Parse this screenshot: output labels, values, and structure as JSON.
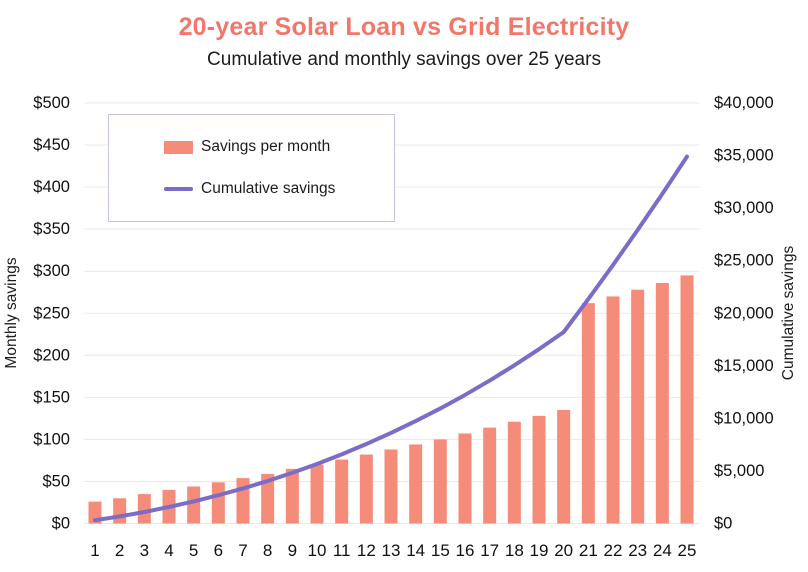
{
  "colors": {
    "title": "#f2776a",
    "bar": "#f58c79",
    "line": "#7c6bc7",
    "legend_border": "#c9c2e8",
    "gridline": "#e9e9ec",
    "text": "#1c1c1c",
    "tick_text": "#111111"
  },
  "chart_data": {
    "type": "bar",
    "title": "20-year Solar Loan vs Grid Electricity",
    "subtitle": "Cumulative and monthly savings over 25 years",
    "xlabel": "",
    "ylabel_left": "Monthly savings",
    "ylabel_right": "Cumulative savings",
    "ylim_left": [
      0,
      500
    ],
    "ylim_right": [
      0,
      40000
    ],
    "grid": "horizontal",
    "legend": {
      "position": "upper left"
    },
    "categories": [
      1,
      2,
      3,
      4,
      5,
      6,
      7,
      8,
      9,
      10,
      11,
      12,
      13,
      14,
      15,
      16,
      17,
      18,
      19,
      20,
      21,
      22,
      23,
      24,
      25
    ],
    "series": [
      {
        "name": "Savings per month",
        "type": "bar",
        "axis": "left",
        "color": "#f58c79",
        "values": [
          26,
          30,
          35,
          40,
          44,
          49,
          54,
          59,
          65,
          70,
          76,
          82,
          88,
          94,
          100,
          107,
          114,
          121,
          128,
          135,
          262,
          270,
          278,
          286,
          295
        ]
      },
      {
        "name": "Cumulative savings",
        "type": "line",
        "axis": "right",
        "color": "#7c6bc7",
        "values": [
          312,
          672,
          1092,
          1572,
          2100,
          2688,
          3336,
          4044,
          4824,
          5664,
          6576,
          7560,
          8616,
          9744,
          10944,
          12228,
          13596,
          15048,
          16584,
          18204,
          21348,
          24588,
          27924,
          31356,
          34896
        ]
      }
    ],
    "yticks_left": {
      "values": [
        0,
        50,
        100,
        150,
        200,
        250,
        300,
        350,
        400,
        450,
        500
      ],
      "labels": [
        "$0",
        "$50",
        "$100",
        "$150",
        "$200",
        "$250",
        "$300",
        "$350",
        "$400",
        "$450",
        "$500"
      ]
    },
    "yticks_right": {
      "values": [
        0,
        5000,
        10000,
        15000,
        20000,
        25000,
        30000,
        35000,
        40000
      ],
      "labels": [
        "$0",
        "$5,000",
        "$10,000",
        "$15,000",
        "$20,000",
        "$25,000",
        "$30,000",
        "$35,000",
        "$40,000"
      ]
    }
  }
}
